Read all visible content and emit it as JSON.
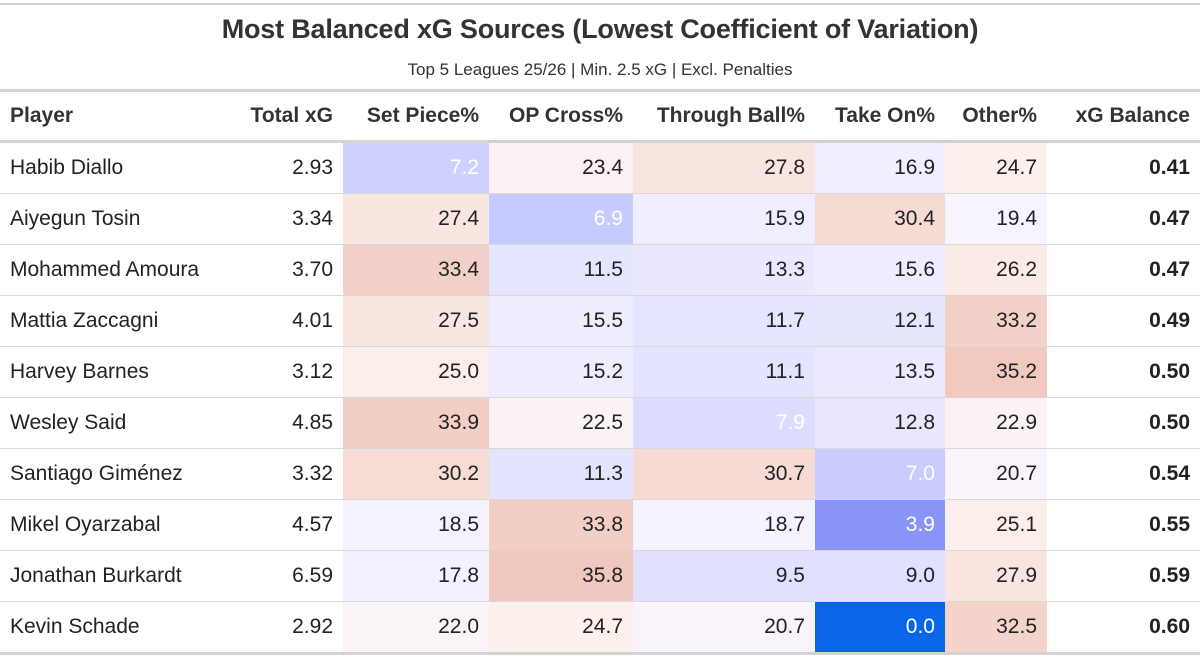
{
  "chart_data": {
    "type": "table",
    "title": "Most Balanced xG Sources (Lowest Coefficient of Variation)",
    "subtitle": "Top 5 Leagues 25/26 | Min. 2.5 xG | Excl. Penalties",
    "columns": [
      "Player",
      "Total xG",
      "Set Piece%",
      "OP Cross%",
      "Through Ball%",
      "Take On%",
      "Other%",
      "xG Balance"
    ],
    "rows": [
      {
        "player": "Habib Diallo",
        "total_xg": "2.93",
        "set_piece": "7.2",
        "op_cross": "23.4",
        "through_ball": "27.8",
        "take_on": "16.9",
        "other": "24.7",
        "balance": "0.41"
      },
      {
        "player": "Aiyegun Tosin",
        "total_xg": "3.34",
        "set_piece": "27.4",
        "op_cross": "6.9",
        "through_ball": "15.9",
        "take_on": "30.4",
        "other": "19.4",
        "balance": "0.47"
      },
      {
        "player": "Mohammed Amoura",
        "total_xg": "3.70",
        "set_piece": "33.4",
        "op_cross": "11.5",
        "through_ball": "13.3",
        "take_on": "15.6",
        "other": "26.2",
        "balance": "0.47"
      },
      {
        "player": "Mattia Zaccagni",
        "total_xg": "4.01",
        "set_piece": "27.5",
        "op_cross": "15.5",
        "through_ball": "11.7",
        "take_on": "12.1",
        "other": "33.2",
        "balance": "0.49"
      },
      {
        "player": "Harvey Barnes",
        "total_xg": "3.12",
        "set_piece": "25.0",
        "op_cross": "15.2",
        "through_ball": "11.1",
        "take_on": "13.5",
        "other": "35.2",
        "balance": "0.50"
      },
      {
        "player": "Wesley Said",
        "total_xg": "4.85",
        "set_piece": "33.9",
        "op_cross": "22.5",
        "through_ball": "7.9",
        "take_on": "12.8",
        "other": "22.9",
        "balance": "0.50"
      },
      {
        "player": "Santiago Giménez",
        "total_xg": "3.32",
        "set_piece": "30.2",
        "op_cross": "11.3",
        "through_ball": "30.7",
        "take_on": "7.0",
        "other": "20.7",
        "balance": "0.54"
      },
      {
        "player": "Mikel Oyarzabal",
        "total_xg": "4.57",
        "set_piece": "18.5",
        "op_cross": "33.8",
        "through_ball": "18.7",
        "take_on": "3.9",
        "other": "25.1",
        "balance": "0.55"
      },
      {
        "player": "Jonathan Burkardt",
        "total_xg": "6.59",
        "set_piece": "17.8",
        "op_cross": "35.8",
        "through_ball": "9.5",
        "take_on": "9.0",
        "other": "27.9",
        "balance": "0.59"
      },
      {
        "player": "Kevin Schade",
        "total_xg": "2.92",
        "set_piece": "22.0",
        "op_cross": "24.7",
        "through_ball": "20.7",
        "take_on": "0.0",
        "other": "32.5",
        "balance": "0.60"
      }
    ]
  },
  "colors": {
    "blue_strong": "#0a66e8",
    "blue_mid": "#8a95f5",
    "neutral": "#f7f4ff",
    "red_mid": "#f2cbc4",
    "text": "#222222",
    "light_text": "#ffffff"
  }
}
